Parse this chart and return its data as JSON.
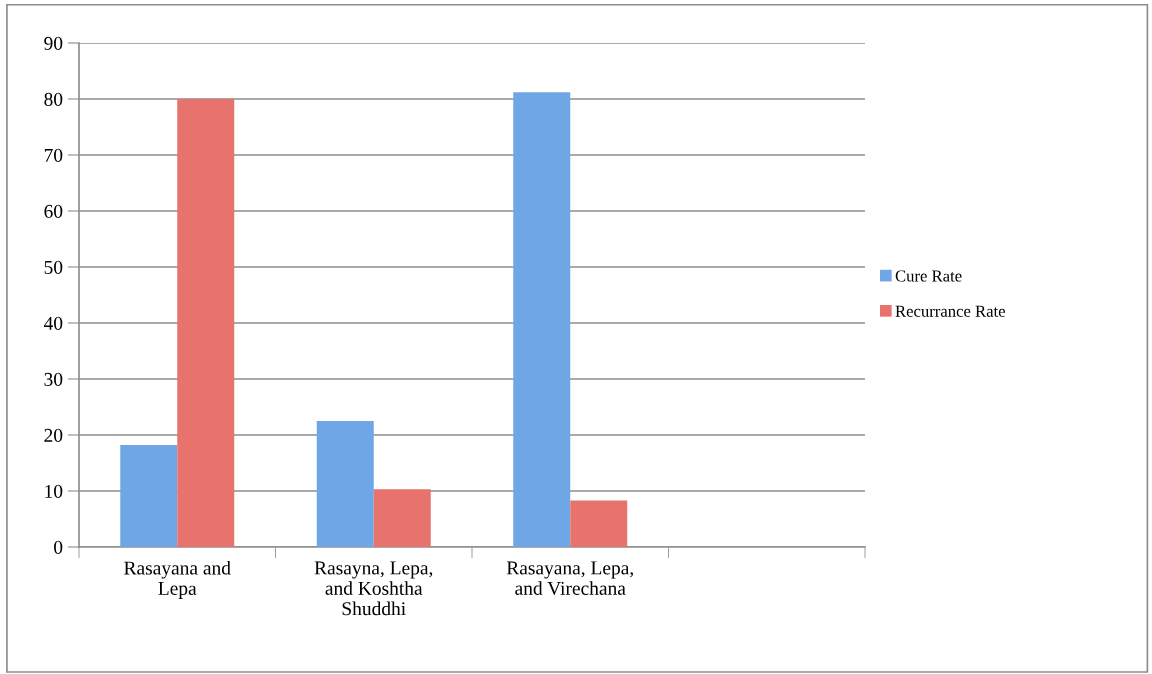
{
  "chart_data": {
    "type": "bar",
    "categories": [
      "Rasayana and\nLepa",
      "Rasayna, Lepa,\nand Koshtha\nShuddhi",
      "Rasayana, Lepa,\nand Virechana",
      null
    ],
    "series": [
      {
        "name": "Cure Rate",
        "color": "#6fa7e6",
        "values": [
          18.2,
          22.5,
          81.2,
          null
        ]
      },
      {
        "name": "Recurrance Rate",
        "color": "#e8736c",
        "values": [
          80,
          10.3,
          8.3,
          null
        ]
      }
    ],
    "ylim": [
      0,
      90
    ],
    "yticks": [
      0,
      10,
      20,
      30,
      40,
      50,
      60,
      70,
      80,
      90
    ],
    "grid": "y",
    "legend": "right"
  }
}
